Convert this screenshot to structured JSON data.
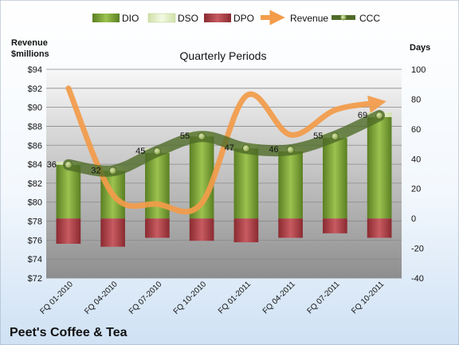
{
  "company_name": "Peet's Coffee & Tea",
  "chart_data": {
    "type": "bar",
    "title": "Quarterly Periods",
    "y_left_label": [
      "Revenue",
      "$millions"
    ],
    "y_right_label": "Days",
    "categories": [
      "FQ 01-2010",
      "FQ 04-2010",
      "FQ 07-2010",
      "FQ 10-2010",
      "FQ 01-2011",
      "FQ 04-2011",
      "FQ 07-2011",
      "FQ 10-2011"
    ],
    "y_left_ticks": [
      "$72",
      "$74",
      "$76",
      "$78",
      "$80",
      "$82",
      "$84",
      "$86",
      "$88",
      "$90",
      "$92",
      "$94"
    ],
    "y_left_range": [
      72,
      94
    ],
    "y_right_ticks": [
      "-40",
      "-20",
      "0",
      "20",
      "40",
      "60",
      "80",
      "100"
    ],
    "y_right_range": [
      -40,
      100
    ],
    "series": [
      {
        "name": "DIO",
        "axis": "right",
        "kind": "bar",
        "color": "#7da43a",
        "values": [
          36,
          32,
          44,
          55,
          47,
          45,
          54,
          68
        ]
      },
      {
        "name": "DSO",
        "axis": "right",
        "kind": "bar-stack",
        "color": "#e3f0c4",
        "values": [
          2,
          3,
          3,
          3,
          3,
          2,
          3,
          3
        ]
      },
      {
        "name": "DPO",
        "axis": "right",
        "kind": "bar-negative",
        "color": "#b5454c",
        "values": [
          -17,
          -19,
          -13,
          -15,
          -16,
          -13,
          -10,
          -13
        ]
      },
      {
        "name": "Revenue",
        "axis": "left",
        "kind": "line",
        "color": "#f39c4a",
        "values": [
          92.0,
          80.8,
          79.8,
          79.9,
          91.2,
          87.1,
          89.7,
          90.5
        ]
      },
      {
        "name": "CCC",
        "axis": "right",
        "kind": "line-markers",
        "color": "#4f6b28",
        "values": [
          36,
          32,
          45,
          55,
          47,
          46,
          55,
          69
        ]
      }
    ],
    "grid": true,
    "legend_position": "top"
  }
}
